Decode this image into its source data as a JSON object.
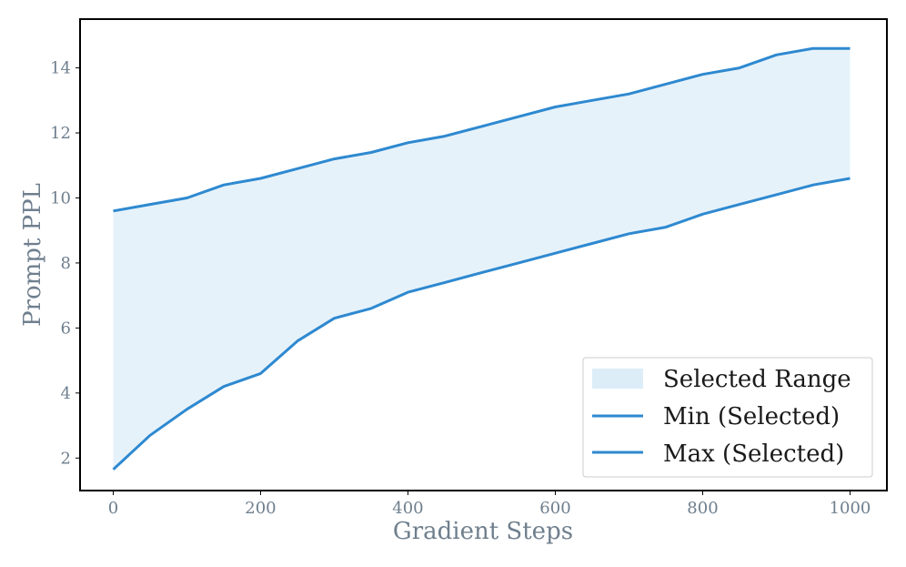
{
  "chart_data": {
    "type": "line",
    "xlabel": "Gradient Steps",
    "ylabel": "Prompt PPL",
    "xlim": [
      -45,
      1050
    ],
    "ylim": [
      1.0,
      15.5
    ],
    "xticks": [
      0,
      200,
      400,
      600,
      800,
      1000
    ],
    "yticks": [
      2,
      4,
      6,
      8,
      10,
      12,
      14
    ],
    "x_tick_labels": [
      "0",
      "200",
      "400",
      "600",
      "800",
      "1000"
    ],
    "y_tick_labels": [
      "2",
      "4",
      "6",
      "8",
      "10",
      "12",
      "14"
    ],
    "grid": false,
    "legend_position": "lower-right",
    "colors": {
      "line": "#2e89d0",
      "fill": "#dcedf8",
      "axis": "#000000",
      "text": "#6f7f8e"
    },
    "x": [
      0,
      50,
      100,
      150,
      200,
      250,
      300,
      350,
      400,
      450,
      500,
      550,
      600,
      650,
      700,
      750,
      800,
      850,
      900,
      950,
      1000
    ],
    "fill_label": "Selected Range",
    "series": [
      {
        "name": "Min (Selected)",
        "values": [
          1.65,
          2.7,
          3.5,
          4.2,
          4.6,
          5.6,
          6.3,
          6.6,
          7.1,
          7.4,
          7.7,
          8.0,
          8.3,
          8.6,
          8.9,
          9.1,
          9.5,
          9.8,
          10.1,
          10.4,
          10.6
        ]
      },
      {
        "name": "Max (Selected)",
        "values": [
          9.6,
          9.8,
          10.0,
          10.4,
          10.6,
          10.9,
          11.2,
          11.4,
          11.7,
          11.9,
          12.2,
          12.5,
          12.8,
          13.0,
          13.2,
          13.5,
          13.8,
          14.0,
          14.4,
          14.6,
          14.6
        ]
      }
    ]
  }
}
